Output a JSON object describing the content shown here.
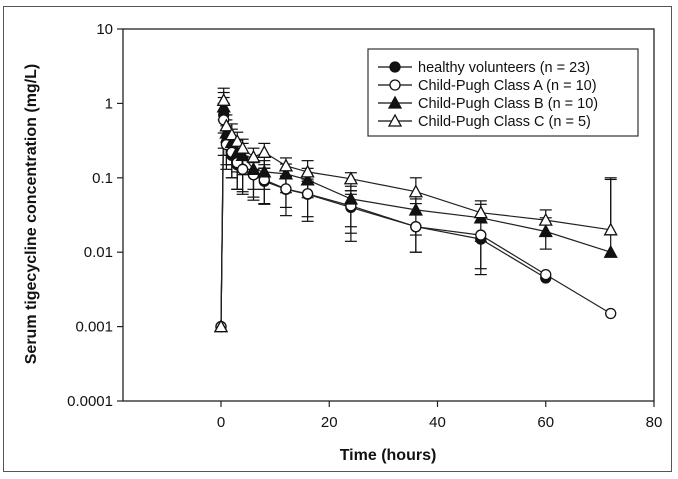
{
  "chart_data": {
    "type": "line",
    "title": "",
    "xlabel": "Time (hours)",
    "ylabel": "Serum tigecycline concentration (mg/L)",
    "xlim": [
      -18,
      80
    ],
    "ylim": [
      0.0001,
      10
    ],
    "yscale": "log",
    "x_ticks": [
      0,
      20,
      40,
      60,
      80
    ],
    "x_tick_labels": [
      "0",
      "20",
      "40",
      "60",
      "80"
    ],
    "y_ticks": [
      10,
      1,
      0.1,
      0.01,
      0.001,
      0.0001
    ],
    "y_tick_labels": [
      "10",
      "1",
      "0.1",
      "0.01",
      "0.001",
      "0.0001"
    ],
    "grid": false,
    "legend_position": "top-right",
    "series": [
      {
        "name": "healthy volunteers (n = 23)",
        "marker": "filled-circle",
        "x": [
          0,
          0.5,
          1,
          2,
          3,
          4,
          6,
          8,
          12,
          16,
          24,
          36,
          48,
          60
        ],
        "y": [
          0.001,
          0.7,
          0.3,
          0.2,
          0.15,
          0.13,
          0.11,
          0.09,
          0.07,
          0.06,
          0.04,
          0.022,
          0.015,
          0.0045
        ],
        "err_low": [
          0,
          0.45,
          0.15,
          0.1,
          0.08,
          0.065,
          0.055,
          0.045,
          0.03,
          0.03,
          0.022,
          0.012,
          0.01,
          0
        ],
        "err_high": [
          0,
          0.5,
          0.2,
          0.1,
          0.08,
          0.065,
          0.055,
          0.045,
          0.035,
          0.03,
          0.02,
          0,
          0,
          0
        ]
      },
      {
        "name": "Child-Pugh Class A (n = 10)",
        "marker": "open-circle",
        "x": [
          0,
          0.5,
          1,
          2,
          3,
          4,
          6,
          8,
          12,
          16,
          24,
          36,
          48,
          60,
          72
        ],
        "y": [
          0.001,
          0.6,
          0.28,
          0.22,
          0.16,
          0.13,
          0.11,
          0.094,
          0.071,
          0.061,
          0.042,
          0.022,
          0.017,
          0.005,
          0.0015
        ],
        "err_low": [
          0,
          0.4,
          0.15,
          0.12,
          0.09,
          0.07,
          0.06,
          0.05,
          0.04,
          0.035,
          0.028,
          0.012,
          0.011,
          0,
          0
        ],
        "err_high": [
          0,
          0.4,
          0.15,
          0.1,
          0.07,
          0.06,
          0.05,
          0.04,
          0.035,
          0.035,
          0.025,
          0,
          0,
          0,
          0
        ]
      },
      {
        "name": "Child-Pugh Class B (n = 10)",
        "marker": "filled-triangle",
        "x": [
          0,
          0.5,
          1,
          2,
          3,
          4,
          6,
          8,
          12,
          16,
          24,
          36,
          48,
          60,
          72
        ],
        "y": [
          0.001,
          0.9,
          0.4,
          0.3,
          0.22,
          0.2,
          0.13,
          0.12,
          0.113,
          0.094,
          0.052,
          0.037,
          0.029,
          0.019,
          0.01
        ],
        "err_low": [
          0,
          0.5,
          0.2,
          0.15,
          0.1,
          0.09,
          0.06,
          0.05,
          0.05,
          0.04,
          0.03,
          0.02,
          0.015,
          0.008,
          0
        ],
        "err_high": [
          0,
          0.5,
          0.2,
          0.15,
          0.1,
          0.09,
          0.06,
          0.05,
          0.04,
          0.04,
          0.025,
          0.015,
          0.015,
          0.01,
          0.085
        ]
      },
      {
        "name": "Child-Pugh Class C (n = 5)",
        "marker": "open-triangle",
        "x": [
          0,
          0.5,
          1,
          2,
          3,
          4,
          6,
          8,
          12,
          16,
          24,
          36,
          48,
          60,
          72
        ],
        "y": [
          0.001,
          1.1,
          0.5,
          0.38,
          0.31,
          0.25,
          0.19,
          0.22,
          0.145,
          0.12,
          0.097,
          0.065,
          0.034,
          0.027,
          0.02
        ],
        "err_low": [
          0,
          0.5,
          0.2,
          0.15,
          0.1,
          0.08,
          0.06,
          0.07,
          0.04,
          0.03,
          0.03,
          0.02,
          0,
          0,
          0
        ],
        "err_high": [
          0,
          0.5,
          0.2,
          0.15,
          0.1,
          0.08,
          0.06,
          0.07,
          0.04,
          0.05,
          0.02,
          0.035,
          0.015,
          0.01,
          0.08
        ]
      }
    ]
  }
}
